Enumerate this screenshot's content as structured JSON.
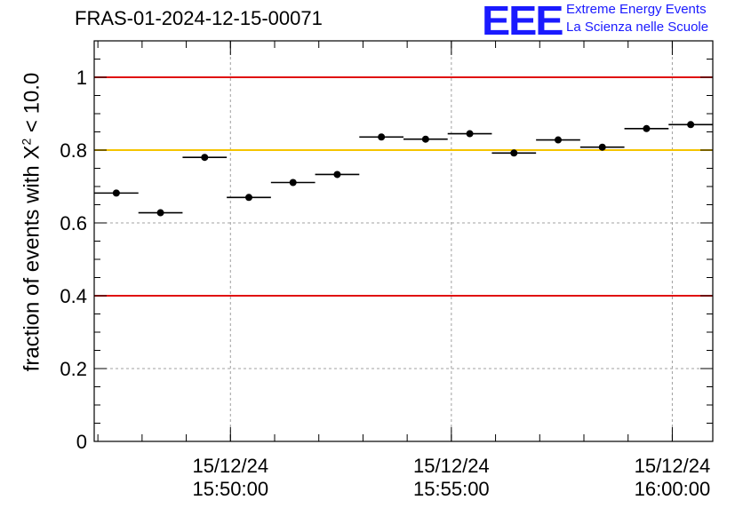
{
  "title": "FRAS-01-2024-12-15-00071",
  "logo": {
    "mark": "EEE",
    "line1": "Extreme Energy Events",
    "line2": "La Scienza nelle Scuole"
  },
  "colors": {
    "red_line": "#e01010",
    "yellow_line": "#f5c400",
    "grid": "#a0a0a0",
    "points": "#000000"
  },
  "chart_data": {
    "type": "scatter",
    "title": "FRAS-01-2024-12-15-00071",
    "ylabel": {
      "pre": "fraction of events with X",
      "sup": "2",
      "post": " < 10.0"
    },
    "ylim": [
      0,
      1.1
    ],
    "yticks": [
      0,
      0.2,
      0.4,
      0.6,
      0.8,
      1
    ],
    "ytick_labels": [
      "0",
      "0.2",
      "0.4",
      "0.6",
      "0.8",
      "1"
    ],
    "xlim": [
      "15:46:55",
      "16:00:55"
    ],
    "xticks": [
      {
        "t": "15:50:00",
        "date": "15/12/24",
        "time": "15:50:00"
      },
      {
        "t": "15:55:00",
        "date": "15/12/24",
        "time": "15:55:00"
      },
      {
        "t": "16:00:00",
        "date": "15/12/24",
        "time": "16:00:00"
      }
    ],
    "grid": true,
    "bin_width_s": 60,
    "reference_lines": [
      {
        "y": 1.0,
        "color": "red"
      },
      {
        "y": 0.8,
        "color": "yellow"
      },
      {
        "y": 0.4,
        "color": "red"
      }
    ],
    "points": [
      {
        "t": "15:47:25",
        "y": 0.682
      },
      {
        "t": "15:48:25",
        "y": 0.628
      },
      {
        "t": "15:49:25",
        "y": 0.78
      },
      {
        "t": "15:50:25",
        "y": 0.67
      },
      {
        "t": "15:51:25",
        "y": 0.711
      },
      {
        "t": "15:52:25",
        "y": 0.733
      },
      {
        "t": "15:53:25",
        "y": 0.836
      },
      {
        "t": "15:54:25",
        "y": 0.83
      },
      {
        "t": "15:55:25",
        "y": 0.845
      },
      {
        "t": "15:56:25",
        "y": 0.792
      },
      {
        "t": "15:57:25",
        "y": 0.828
      },
      {
        "t": "15:58:25",
        "y": 0.808
      },
      {
        "t": "15:59:25",
        "y": 0.859
      },
      {
        "t": "16:00:25",
        "y": 0.87
      }
    ]
  }
}
